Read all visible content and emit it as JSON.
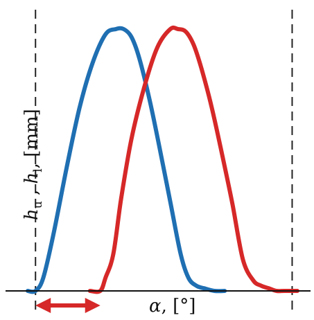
{
  "chart_data": {
    "type": "line",
    "title": "",
    "xlabel_symbol": "α",
    "xlabel_unit": ", [°]",
    "ylabel_h": "h",
    "ylabel_sub_u": "u",
    "ylabel_sep": " , ",
    "ylabel_sub_l": "l",
    "ylabel_unit": ", [mm]",
    "xlim": [
      0,
      1
    ],
    "ylim": [
      0,
      1
    ],
    "grid": false,
    "legend": "none",
    "dashed_lines_x": [
      0.03,
      1.02
    ],
    "offset_arrow": {
      "from": 0.03,
      "to": 0.28,
      "color": "#d62828"
    },
    "series": [
      {
        "color": "#1f6fb2",
        "x": [
          0.0,
          0.03,
          0.06,
          0.1,
          0.15,
          0.2,
          0.25,
          0.3,
          0.34,
          0.37,
          0.4,
          0.43,
          0.47,
          0.51,
          0.55,
          0.59,
          0.62,
          0.65,
          0.68,
          0.72,
          0.76
        ],
        "y": [
          0.0,
          0.0,
          0.05,
          0.22,
          0.47,
          0.7,
          0.87,
          0.98,
          1.0,
          1.0,
          0.97,
          0.89,
          0.73,
          0.54,
          0.34,
          0.14,
          0.05,
          0.02,
          0.01,
          0.0,
          0.0
        ]
      },
      {
        "color": "#d62828",
        "x": [
          0.24,
          0.28,
          0.3,
          0.33,
          0.36,
          0.4,
          0.45,
          0.5,
          0.55,
          0.58,
          0.61,
          0.64,
          0.67,
          0.71,
          0.75,
          0.79,
          0.83,
          0.87,
          0.9,
          0.93,
          0.96,
          0.99,
          1.04
        ],
        "y": [
          0.0,
          0.0,
          0.05,
          0.14,
          0.35,
          0.58,
          0.78,
          0.93,
          1.0,
          1.0,
          0.99,
          0.94,
          0.85,
          0.7,
          0.52,
          0.33,
          0.12,
          0.04,
          0.02,
          0.01,
          0.0,
          0.0,
          0.0
        ]
      }
    ]
  }
}
